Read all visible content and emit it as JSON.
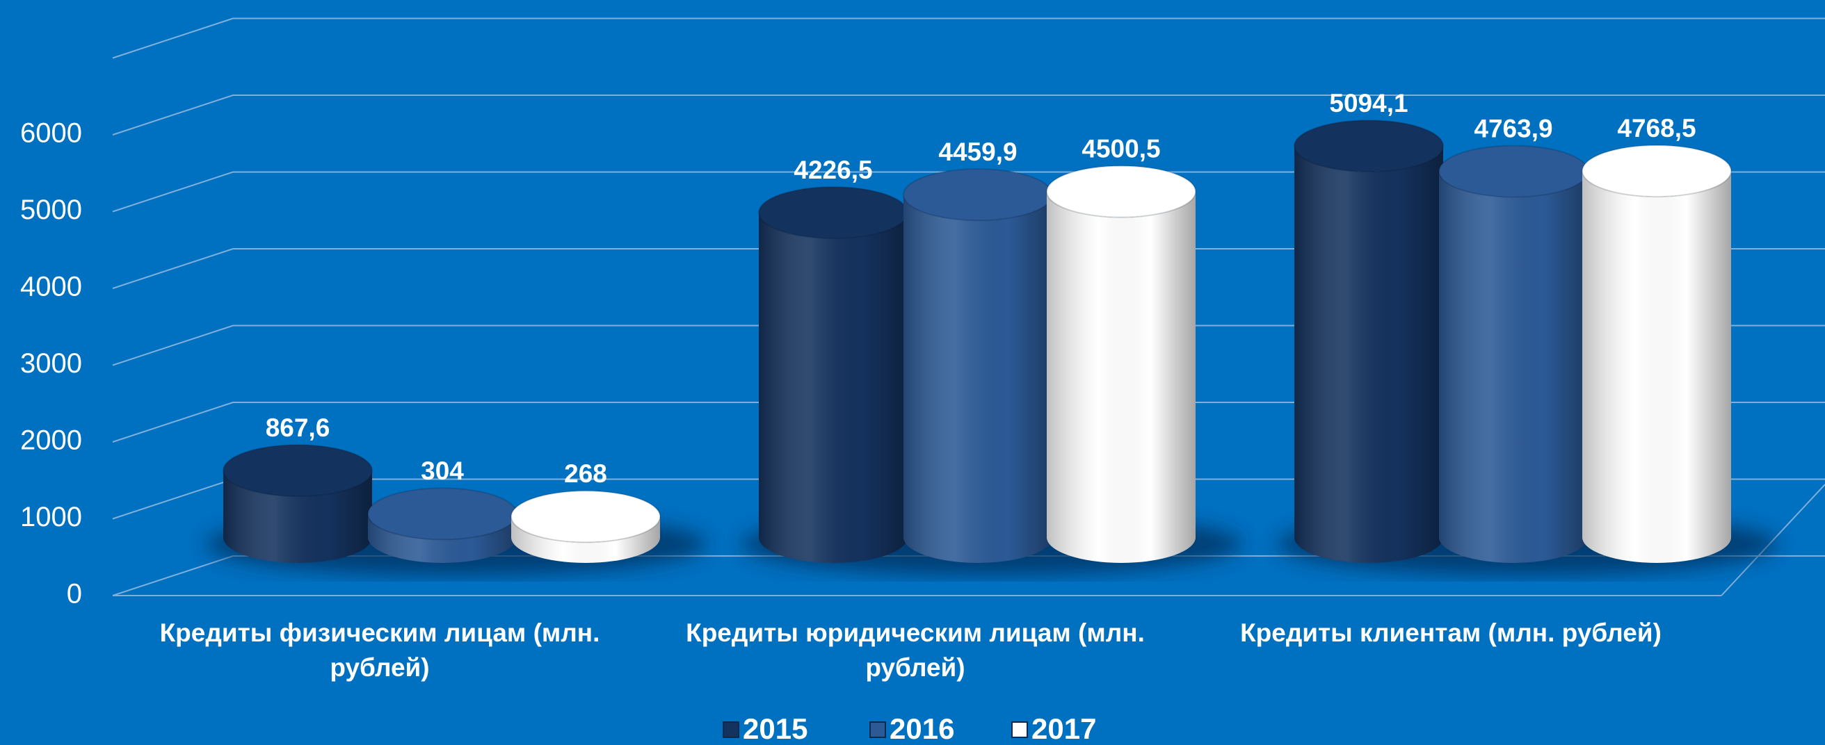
{
  "chart_data": {
    "type": "bar3d",
    "categories": [
      "Кредиты физическим лицам (млн. рублей)",
      "Кредиты юридическим лицам (млн. рублей)",
      "Кредиты клиентам (млн. рублей)"
    ],
    "series": [
      {
        "name": "2015",
        "color": "#14325e",
        "values": [
          867.6,
          4226.5,
          5094.1
        ],
        "value_labels": [
          "867,6",
          "4226,5",
          "5094,1"
        ]
      },
      {
        "name": "2016",
        "color": "#2c5a97",
        "values": [
          304,
          4459.9,
          4763.9
        ],
        "value_labels": [
          "304",
          "4459,9",
          "4763,9"
        ]
      },
      {
        "name": "2017",
        "color": "#ffffff",
        "values": [
          268,
          4500.5,
          4768.5
        ],
        "value_labels": [
          "268",
          "4500,5",
          "4768,5"
        ]
      }
    ],
    "ylim": [
      0,
      7000
    ],
    "yticks": [
      0,
      1000,
      2000,
      3000,
      4000,
      5000,
      6000
    ],
    "grid": true,
    "legend": "bottom"
  }
}
